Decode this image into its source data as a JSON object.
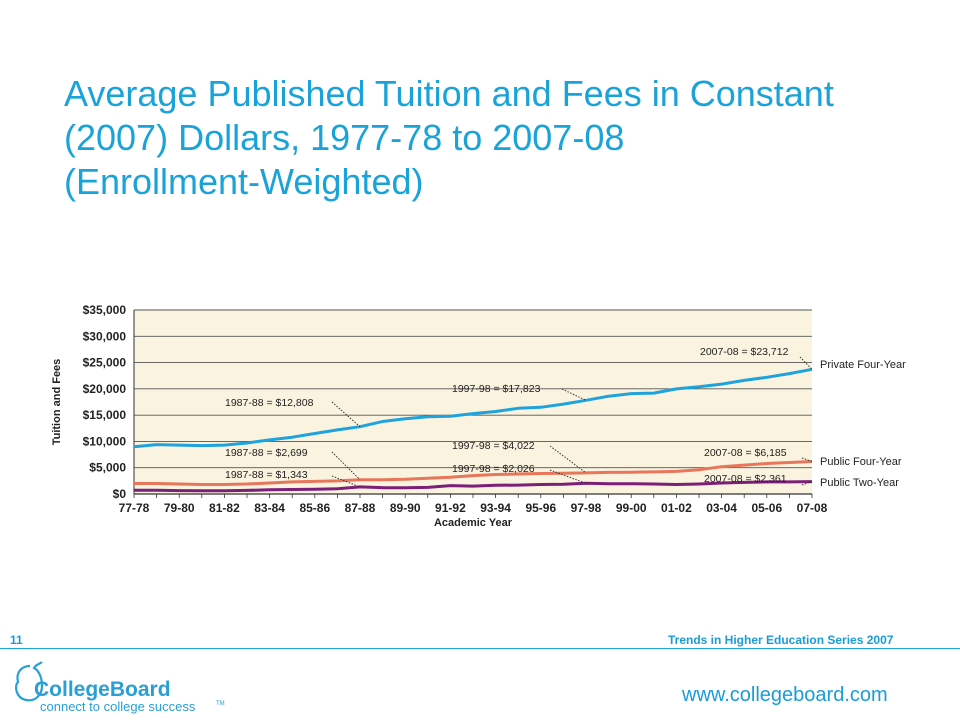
{
  "title_lines": [
    "Average Published Tuition and Fees in Constant",
    "(2007) Dollars, 1977-78 to 2007-08",
    "(Enrollment-Weighted)"
  ],
  "footer": {
    "page_number": "11",
    "series": "Trends in Higher Education Series 2007",
    "website": "www.collegeboard.com",
    "logo_text": "CollegeBoard",
    "tagline": "connect to college success",
    "trademark": "TM"
  },
  "colors": {
    "title": "#1aa3d8",
    "plot_bg": "#f9f3df",
    "private_four_year": "#1fa3dc",
    "public_four_year": "#e8765a",
    "public_two_year": "#7b1f78"
  },
  "chart_data": {
    "type": "line",
    "ylabel": "Tuition and Fees",
    "xlabel": "Academic Year",
    "ylim": [
      0,
      35000
    ],
    "y_ticks": [
      "$0",
      "$5,000",
      "$10,000",
      "$15,000",
      "$20,000",
      "$25,000",
      "$30,000",
      "$35,000"
    ],
    "grid": true,
    "categories": [
      "77-78",
      "78-79",
      "79-80",
      "80-81",
      "81-82",
      "82-83",
      "83-84",
      "84-85",
      "85-86",
      "86-87",
      "87-88",
      "88-89",
      "89-90",
      "90-91",
      "91-92",
      "92-93",
      "93-94",
      "94-95",
      "95-96",
      "96-97",
      "97-98",
      "98-99",
      "99-00",
      "00-01",
      "01-02",
      "02-03",
      "03-04",
      "04-05",
      "05-06",
      "06-07",
      "07-08"
    ],
    "x_tick_labels": [
      "77-78",
      "79-80",
      "81-82",
      "83-84",
      "85-86",
      "87-88",
      "89-90",
      "91-92",
      "93-94",
      "95-96",
      "97-98",
      "99-00",
      "01-02",
      "03-04",
      "05-06",
      "07-08"
    ],
    "series": [
      {
        "name": "Private Four-Year",
        "values": [
          9000,
          9400,
          9300,
          9200,
          9300,
          9700,
          10300,
          10800,
          11500,
          12200,
          12808,
          13800,
          14300,
          14700,
          14800,
          15300,
          15700,
          16300,
          16500,
          17100,
          17823,
          18600,
          19100,
          19200,
          20000,
          20400,
          20900,
          21600,
          22200,
          22900,
          23712
        ]
      },
      {
        "name": "Public Four-Year",
        "values": [
          2000,
          2000,
          1900,
          1800,
          1800,
          1900,
          2100,
          2300,
          2400,
          2500,
          2699,
          2700,
          2800,
          3000,
          3200,
          3500,
          3700,
          3800,
          3900,
          3950,
          4022,
          4100,
          4150,
          4200,
          4300,
          4600,
          5200,
          5500,
          5800,
          6000,
          6185
        ]
      },
      {
        "name": "Public Two-Year",
        "values": [
          700,
          700,
          650,
          620,
          620,
          680,
          800,
          850,
          900,
          1000,
          1343,
          1200,
          1200,
          1250,
          1600,
          1500,
          1650,
          1700,
          1800,
          1850,
          2026,
          1950,
          1950,
          1900,
          1800,
          1900,
          2100,
          2200,
          2300,
          2300,
          2361
        ]
      }
    ],
    "annotations": [
      {
        "text": "1987-88 = $12,808"
      },
      {
        "text": "1987-88 = $2,699"
      },
      {
        "text": "1987-88 = $1,343"
      },
      {
        "text": "1997-98 = $17,823"
      },
      {
        "text": "1997-98 = $4,022"
      },
      {
        "text": "1997-98 = $2,026"
      },
      {
        "text": "2007-08 = $23,712"
      },
      {
        "text": "2007-08 = $6,185"
      },
      {
        "text": "2007-08 = $2,361"
      }
    ]
  }
}
